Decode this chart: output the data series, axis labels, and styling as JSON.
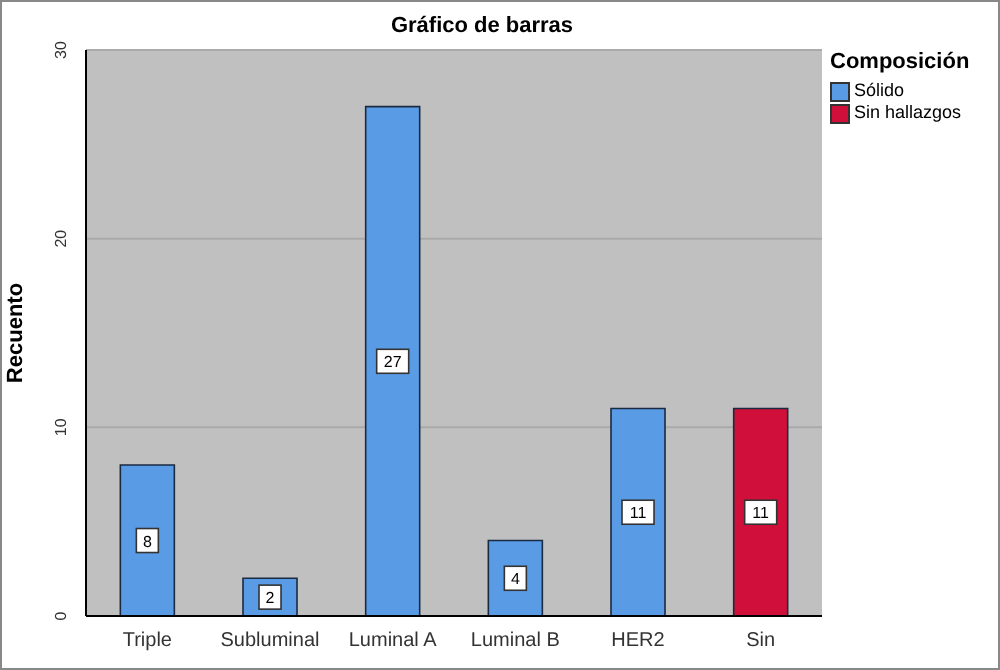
{
  "chart_data": {
    "type": "bar",
    "title": "Gráfico de barras",
    "ylabel": "Recuento",
    "legend_title": "Composición",
    "categories": [
      "Triple",
      "Subluminal",
      "Luminal A",
      "Luminal B",
      "HER2",
      "Sin"
    ],
    "series": [
      {
        "name": "Sólido",
        "color": "#5a9be6",
        "values": [
          8,
          2,
          27,
          4,
          11,
          null
        ]
      },
      {
        "name": "Sin hallazgos",
        "color": "#d0103a",
        "values": [
          null,
          null,
          null,
          null,
          null,
          11
        ]
      }
    ],
    "ylim": [
      0,
      30
    ],
    "yticks": [
      0,
      10,
      20,
      30
    ],
    "grid": "y",
    "legend": "top right",
    "data_labels": true
  }
}
